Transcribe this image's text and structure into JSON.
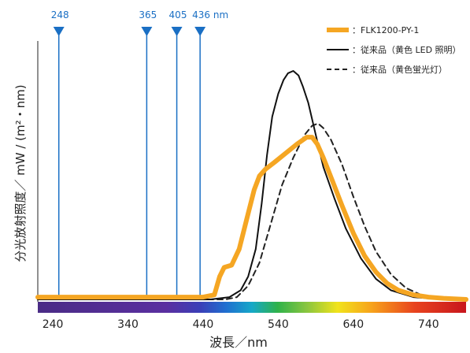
{
  "chart_data": {
    "type": "line",
    "title": "",
    "xlabel": "波長／nm",
    "ylabel": "分光放射照度／ mW / (m²・nm)",
    "xlim": [
      220,
      790
    ],
    "ylim": [
      0,
      1.0
    ],
    "x_ticks": [
      240,
      340,
      440,
      540,
      640,
      740
    ],
    "grid": false,
    "legend_position": "top-right",
    "wavelength_markers": [
      {
        "x": 248,
        "label": "248"
      },
      {
        "x": 365,
        "label": "365"
      },
      {
        "x": 405,
        "label": "405"
      },
      {
        "x": 436,
        "label": "436 nm"
      }
    ],
    "marker_color": "#1a6fc4",
    "series": [
      {
        "name": "FLK1200-PY-1",
        "color": "#f5a623",
        "style": "solid-thick",
        "x": [
          220,
          440,
          455,
          462,
          468,
          478,
          488,
          498,
          508,
          515,
          523,
          535,
          550,
          565,
          578,
          585,
          592,
          600,
          612,
          625,
          640,
          655,
          670,
          685,
          700,
          720,
          740,
          760,
          790
        ],
        "y": [
          0.01,
          0.01,
          0.02,
          0.1,
          0.14,
          0.15,
          0.22,
          0.35,
          0.48,
          0.54,
          0.57,
          0.6,
          0.64,
          0.68,
          0.71,
          0.71,
          0.68,
          0.62,
          0.52,
          0.41,
          0.29,
          0.19,
          0.12,
          0.07,
          0.04,
          0.02,
          0.01,
          0.005,
          0.0
        ]
      },
      {
        "name": "従来品（黄色 LED 照明）",
        "color": "#111111",
        "style": "solid",
        "x": [
          220,
          450,
          475,
          490,
          500,
          510,
          518,
          525,
          532,
          540,
          547,
          553,
          560,
          567,
          573,
          580,
          590,
          600,
          615,
          630,
          650,
          670,
          690,
          720,
          760,
          790
        ],
        "y": [
          0.0,
          0.0,
          0.01,
          0.04,
          0.1,
          0.22,
          0.42,
          0.63,
          0.8,
          0.9,
          0.96,
          0.99,
          1.0,
          0.98,
          0.93,
          0.86,
          0.72,
          0.58,
          0.44,
          0.31,
          0.18,
          0.09,
          0.04,
          0.01,
          0.0,
          0.0
        ]
      },
      {
        "name": "従来品（黄色蛍光灯）",
        "color": "#222222",
        "style": "dashed",
        "x": [
          220,
          470,
          485,
          500,
          515,
          530,
          545,
          560,
          575,
          585,
          593,
          600,
          610,
          625,
          640,
          655,
          670,
          690,
          710,
          730,
          760,
          790
        ],
        "y": [
          0.0,
          0.0,
          0.01,
          0.06,
          0.16,
          0.33,
          0.5,
          0.62,
          0.72,
          0.76,
          0.77,
          0.75,
          0.7,
          0.59,
          0.45,
          0.32,
          0.21,
          0.11,
          0.05,
          0.02,
          0.0,
          0.0
        ]
      }
    ],
    "spectrum_bar": true
  }
}
